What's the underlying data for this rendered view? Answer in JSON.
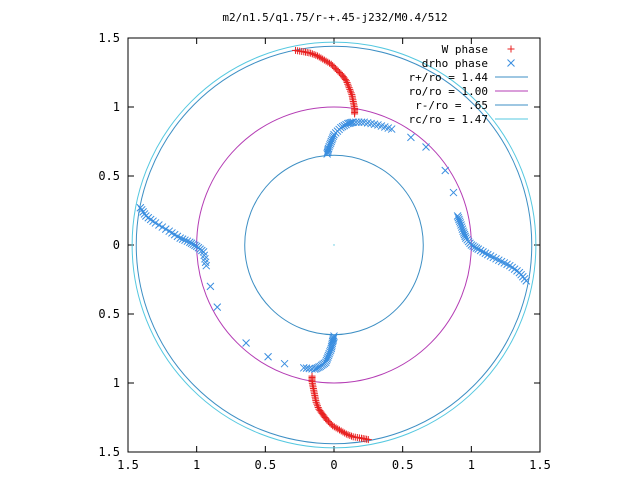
{
  "chart_data": {
    "type": "scatter",
    "title": "m2/n1.5/q1.75/r-+.45-j232/M0.4/512",
    "xlabel": "",
    "ylabel": "",
    "xlim": [
      -1.5,
      1.5
    ],
    "ylim": [
      -1.5,
      1.5
    ],
    "x_ticks": [
      -1.5,
      -1,
      -0.5,
      0,
      0.5,
      1,
      1.5
    ],
    "x_tick_labels": [
      "1.5",
      "1",
      "0.5",
      "0",
      "0.5",
      "1",
      "1.5"
    ],
    "y_ticks": [
      1.5,
      1,
      0.5,
      0,
      -0.5,
      -1,
      -1.5
    ],
    "y_tick_labels": [
      "1.5",
      "1",
      "0.5",
      "0",
      "0.5",
      "1",
      "1.5"
    ],
    "grid": false,
    "legend_position": "top-right",
    "circles": [
      {
        "name": "r+/ro = 1.44",
        "radius": 1.44,
        "color": "#3d8fc4"
      },
      {
        "name": "ro/ro = 1.00",
        "radius": 1.0,
        "color": "#b43cb4"
      },
      {
        "name": "r-/ro = .65",
        "radius": 0.65,
        "color": "#3d8fc4"
      },
      {
        "name": "rc/ro = 1.47",
        "radius": 1.47,
        "color": "#55c8e0"
      }
    ],
    "series": [
      {
        "name": "W phase",
        "marker": "plus",
        "color": "#e82020",
        "points": [
          [
            -0.28,
            1.41
          ],
          [
            -0.22,
            1.4
          ],
          [
            -0.17,
            1.39
          ],
          [
            -0.12,
            1.37
          ],
          [
            -0.07,
            1.34
          ],
          [
            -0.02,
            1.31
          ],
          [
            0.02,
            1.27
          ],
          [
            0.06,
            1.23
          ],
          [
            0.09,
            1.19
          ],
          [
            0.11,
            1.14
          ],
          [
            0.13,
            1.09
          ],
          [
            0.14,
            1.04
          ],
          [
            0.15,
            0.99
          ],
          [
            0.15,
            0.95
          ],
          [
            0.25,
            -1.41
          ],
          [
            0.2,
            -1.4
          ],
          [
            0.14,
            -1.39
          ],
          [
            0.09,
            -1.37
          ],
          [
            0.04,
            -1.34
          ],
          [
            -0.01,
            -1.31
          ],
          [
            -0.05,
            -1.27
          ],
          [
            -0.08,
            -1.23
          ],
          [
            -0.11,
            -1.19
          ],
          [
            -0.13,
            -1.14
          ],
          [
            -0.14,
            -1.09
          ],
          [
            -0.15,
            -1.04
          ],
          [
            -0.16,
            -0.99
          ],
          [
            -0.16,
            -0.95
          ]
        ]
      },
      {
        "name": "drho phase",
        "marker": "x",
        "color": "#3a8ee0",
        "points": [
          [
            -0.05,
            0.66
          ],
          [
            -0.04,
            0.7
          ],
          [
            -0.02,
            0.75
          ],
          [
            0.0,
            0.8
          ],
          [
            0.05,
            0.85
          ],
          [
            0.1,
            0.88
          ],
          [
            0.14,
            0.89
          ],
          [
            0.22,
            0.89
          ],
          [
            0.32,
            0.87
          ],
          [
            0.42,
            0.84
          ],
          [
            0.56,
            0.78
          ],
          [
            0.67,
            0.71
          ],
          [
            0.81,
            0.54
          ],
          [
            0.87,
            0.38
          ],
          [
            0.9,
            0.21
          ],
          [
            0.92,
            0.16
          ],
          [
            0.94,
            0.1
          ],
          [
            0.96,
            0.05
          ],
          [
            1.0,
            0.0
          ],
          [
            1.05,
            -0.03
          ],
          [
            1.12,
            -0.07
          ],
          [
            1.2,
            -0.11
          ],
          [
            1.28,
            -0.15
          ],
          [
            1.35,
            -0.2
          ],
          [
            1.4,
            -0.26
          ],
          [
            0.0,
            -0.66
          ],
          [
            -0.01,
            -0.7
          ],
          [
            -0.02,
            -0.75
          ],
          [
            -0.04,
            -0.8
          ],
          [
            -0.06,
            -0.85
          ],
          [
            -0.1,
            -0.88
          ],
          [
            -0.14,
            -0.9
          ],
          [
            -0.22,
            -0.89
          ],
          [
            -0.36,
            -0.86
          ],
          [
            -0.48,
            -0.81
          ],
          [
            -0.64,
            -0.71
          ],
          [
            -0.85,
            -0.45
          ],
          [
            -0.9,
            -0.3
          ],
          [
            -0.93,
            -0.15
          ],
          [
            -0.95,
            -0.05
          ],
          [
            -1.0,
            -0.01
          ],
          [
            -1.05,
            0.02
          ],
          [
            -1.12,
            0.05
          ],
          [
            -1.2,
            0.1
          ],
          [
            -1.3,
            0.16
          ],
          [
            -1.37,
            0.21
          ],
          [
            -1.41,
            0.27
          ]
        ]
      }
    ],
    "center_point": [
      0,
      0
    ]
  }
}
